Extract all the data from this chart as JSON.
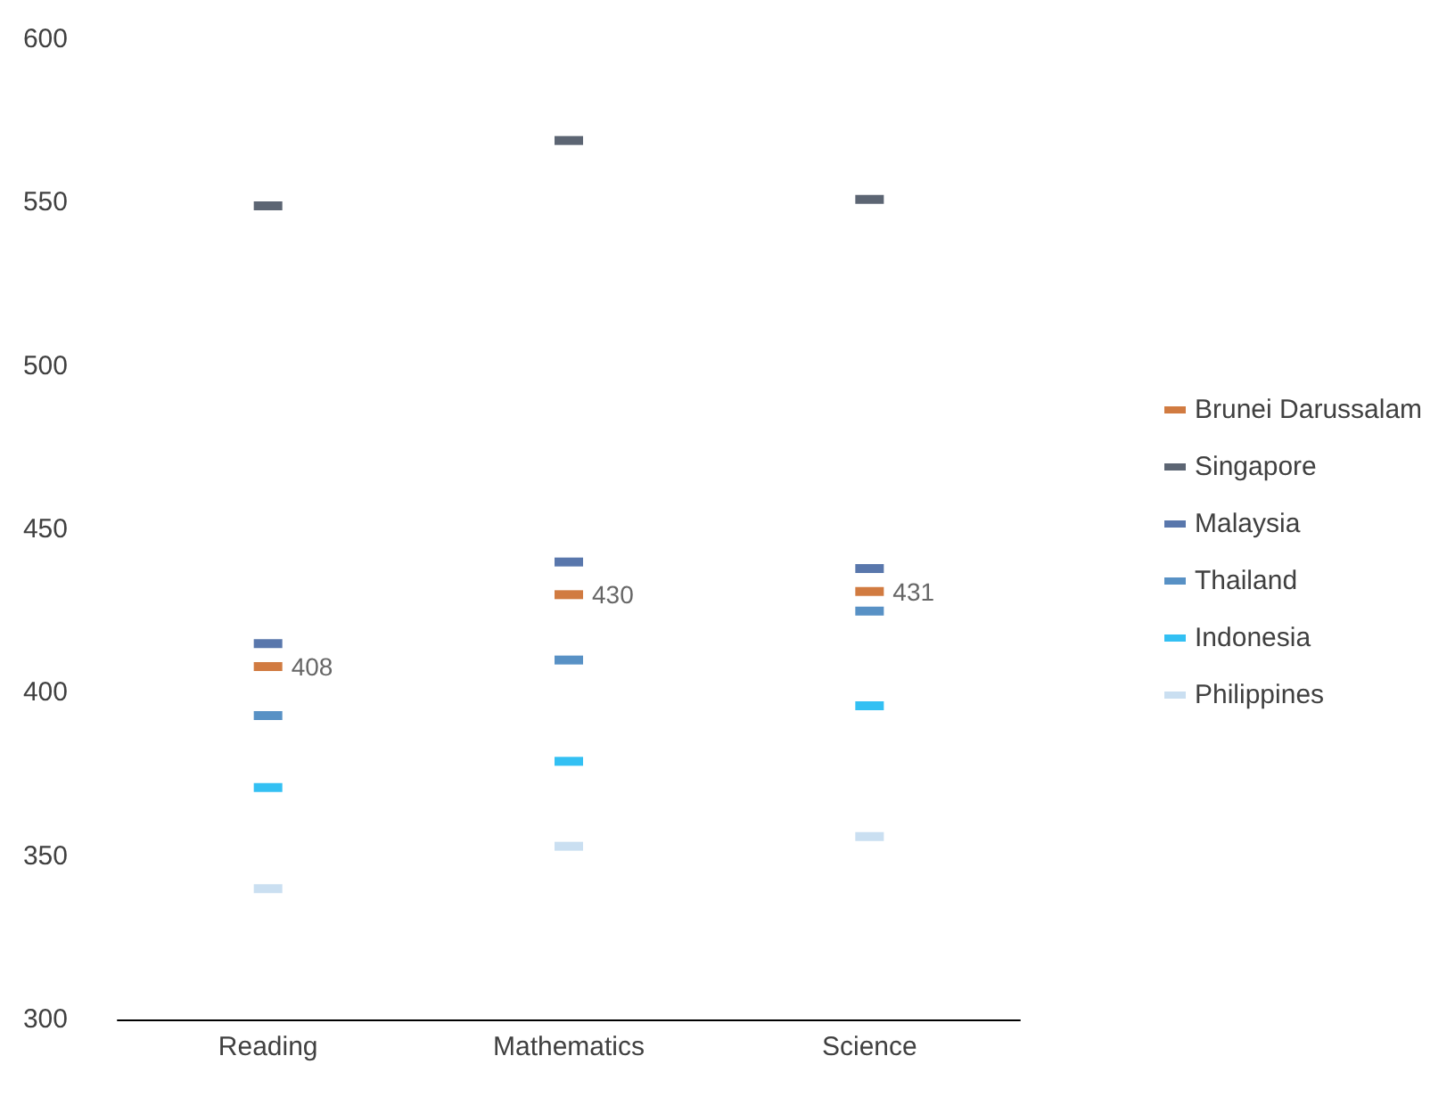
{
  "chart_data": {
    "type": "scatter",
    "categories": [
      "Reading",
      "Mathematics",
      "Science"
    ],
    "ylim": [
      300,
      600
    ],
    "yticks": [
      300,
      350,
      400,
      450,
      500,
      550,
      600
    ],
    "grid": false,
    "legend": "right",
    "marker": "square",
    "series": [
      {
        "name": "Brunei Darussalam",
        "color": "#c55a11",
        "values": [
          408,
          430,
          431
        ],
        "value_labels": [
          "408",
          "430",
          "431"
        ]
      },
      {
        "name": "Singapore",
        "color": "#333f50",
        "values": [
          549,
          569,
          551
        ]
      },
      {
        "name": "Malaysia",
        "color": "#2f5597",
        "values": [
          415,
          440,
          438
        ]
      },
      {
        "name": "Thailand",
        "color": "#2e75b6",
        "values": [
          393,
          410,
          425
        ]
      },
      {
        "name": "Indonesia",
        "color": "#00b0f0",
        "values": [
          371,
          379,
          396
        ]
      },
      {
        "name": "Philippines",
        "color": "#bdd7ee",
        "values": [
          340,
          353,
          356
        ]
      }
    ]
  }
}
